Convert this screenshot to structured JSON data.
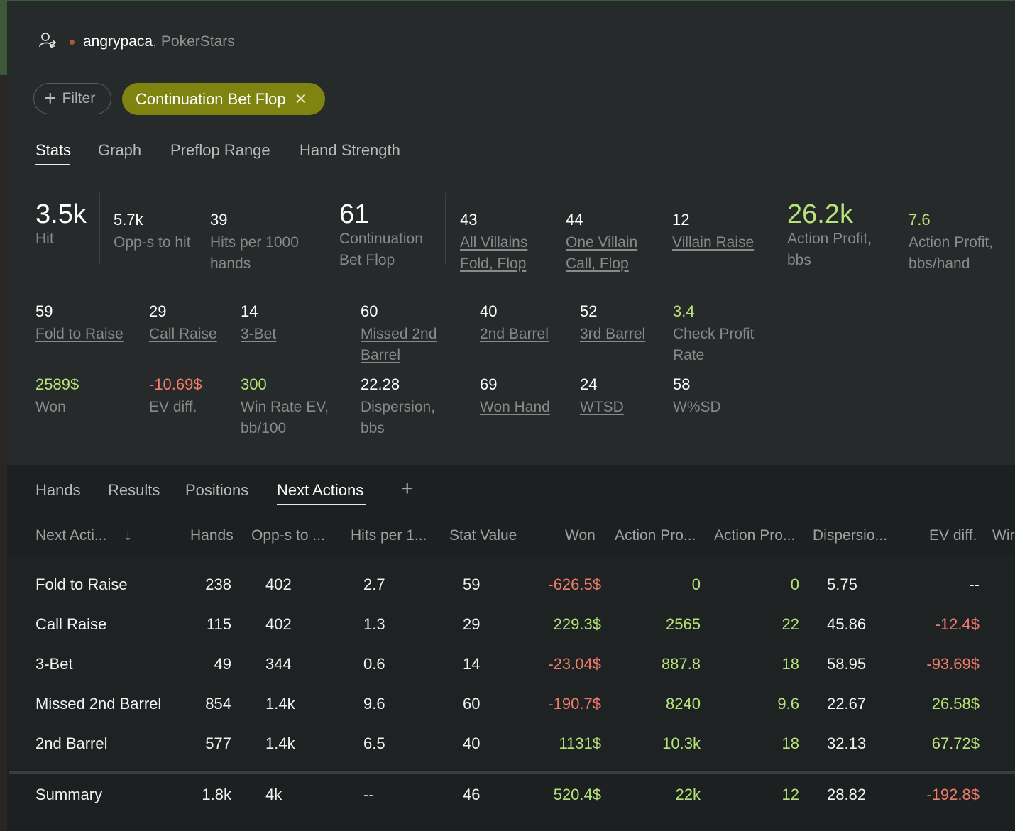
{
  "header": {
    "username": "angrypaca",
    "separator": ",",
    "site": "PokerStars"
  },
  "filters": {
    "add_label": "Filter",
    "active_chip": "Continuation Bet Flop"
  },
  "top_tabs": [
    "Stats",
    "Graph",
    "Preflop Range",
    "Hand Strength"
  ],
  "stats_row1": [
    {
      "value": "3.5k",
      "label": "Hit"
    },
    {
      "value": "5.7k",
      "label": "Opp-s to hit"
    },
    {
      "value": "39",
      "label1": "Hits per 1000",
      "label2": "hands"
    },
    {
      "value": "61",
      "label1": "Continuation",
      "label2": "Bet Flop"
    },
    {
      "value": "43",
      "label1": "All Villains",
      "label2": "Fold, Flop"
    },
    {
      "value": "44",
      "label1": "One Villain",
      "label2": "Call, Flop"
    },
    {
      "value": "12",
      "label": "Villain Raise"
    },
    {
      "value": "26.2k",
      "label1": "Action Profit,",
      "label2": "bbs"
    },
    {
      "value": "7.6",
      "label1": "Action Profit,",
      "label2": "bbs/hand"
    }
  ],
  "stats_row2": [
    {
      "value": "59",
      "label": "Fold to Raise"
    },
    {
      "value": "29",
      "label": "Call Raise"
    },
    {
      "value": "14",
      "label": "3-Bet"
    },
    {
      "value": "60",
      "label1": "Missed 2nd",
      "label2": "Barrel"
    },
    {
      "value": "40",
      "label": "2nd Barrel"
    },
    {
      "value": "52",
      "label": "3rd Barrel"
    },
    {
      "value": "3.4",
      "label1": "Check Profit",
      "label2": "Rate"
    }
  ],
  "stats_row3": [
    {
      "value": "2589$",
      "label": "Won"
    },
    {
      "value": "-10.69$",
      "label": "EV diff."
    },
    {
      "value": "300",
      "label1": "Win Rate EV,",
      "label2": "bb/100"
    },
    {
      "value": "22.28",
      "label1": "Dispersion,",
      "label2": "bbs"
    },
    {
      "value": "69",
      "label": "Won Hand"
    },
    {
      "value": "24",
      "label": "WTSD"
    },
    {
      "value": "58",
      "label": "W%SD"
    }
  ],
  "bottom_tabs": [
    "Hands",
    "Results",
    "Positions",
    "Next Actions",
    "+"
  ],
  "table": {
    "sort_icon": "↓",
    "headers": [
      "Next Acti...",
      "Hands",
      "Opp-s to ...",
      "Hits per 1...",
      "Stat Value",
      "Won",
      "Action Pro...",
      "Action Pro...",
      "Dispersio...",
      "EV diff.",
      "Wir"
    ],
    "rows": [
      [
        "Fold to Raise",
        "238",
        "402",
        "2.7",
        "59",
        "-626.5$",
        "0",
        "0",
        "5.75",
        "--"
      ],
      [
        "Call Raise",
        "115",
        "402",
        "1.3",
        "29",
        "229.3$",
        "2565",
        "22",
        "45.86",
        "-12.4$"
      ],
      [
        "3-Bet",
        "49",
        "344",
        "0.6",
        "14",
        "-23.04$",
        "887.8",
        "18",
        "58.95",
        "-93.69$"
      ],
      [
        "Missed 2nd Barrel",
        "854",
        "1.4k",
        "9.6",
        "60",
        "-190.7$",
        "8240",
        "9.6",
        "22.67",
        "26.58$"
      ],
      [
        "2nd Barrel",
        "577",
        "1.4k",
        "6.5",
        "40",
        "1131$",
        "10.3k",
        "18",
        "32.13",
        "67.72$"
      ]
    ],
    "summary": [
      "Summary",
      "1.8k",
      "4k",
      "--",
      "46",
      "520.4$",
      "22k",
      "12",
      "28.82",
      "-192.8$"
    ]
  },
  "colors": {
    "positive": "#b6e37a",
    "negative": "#f07c6c",
    "chip": "#7f8410"
  }
}
